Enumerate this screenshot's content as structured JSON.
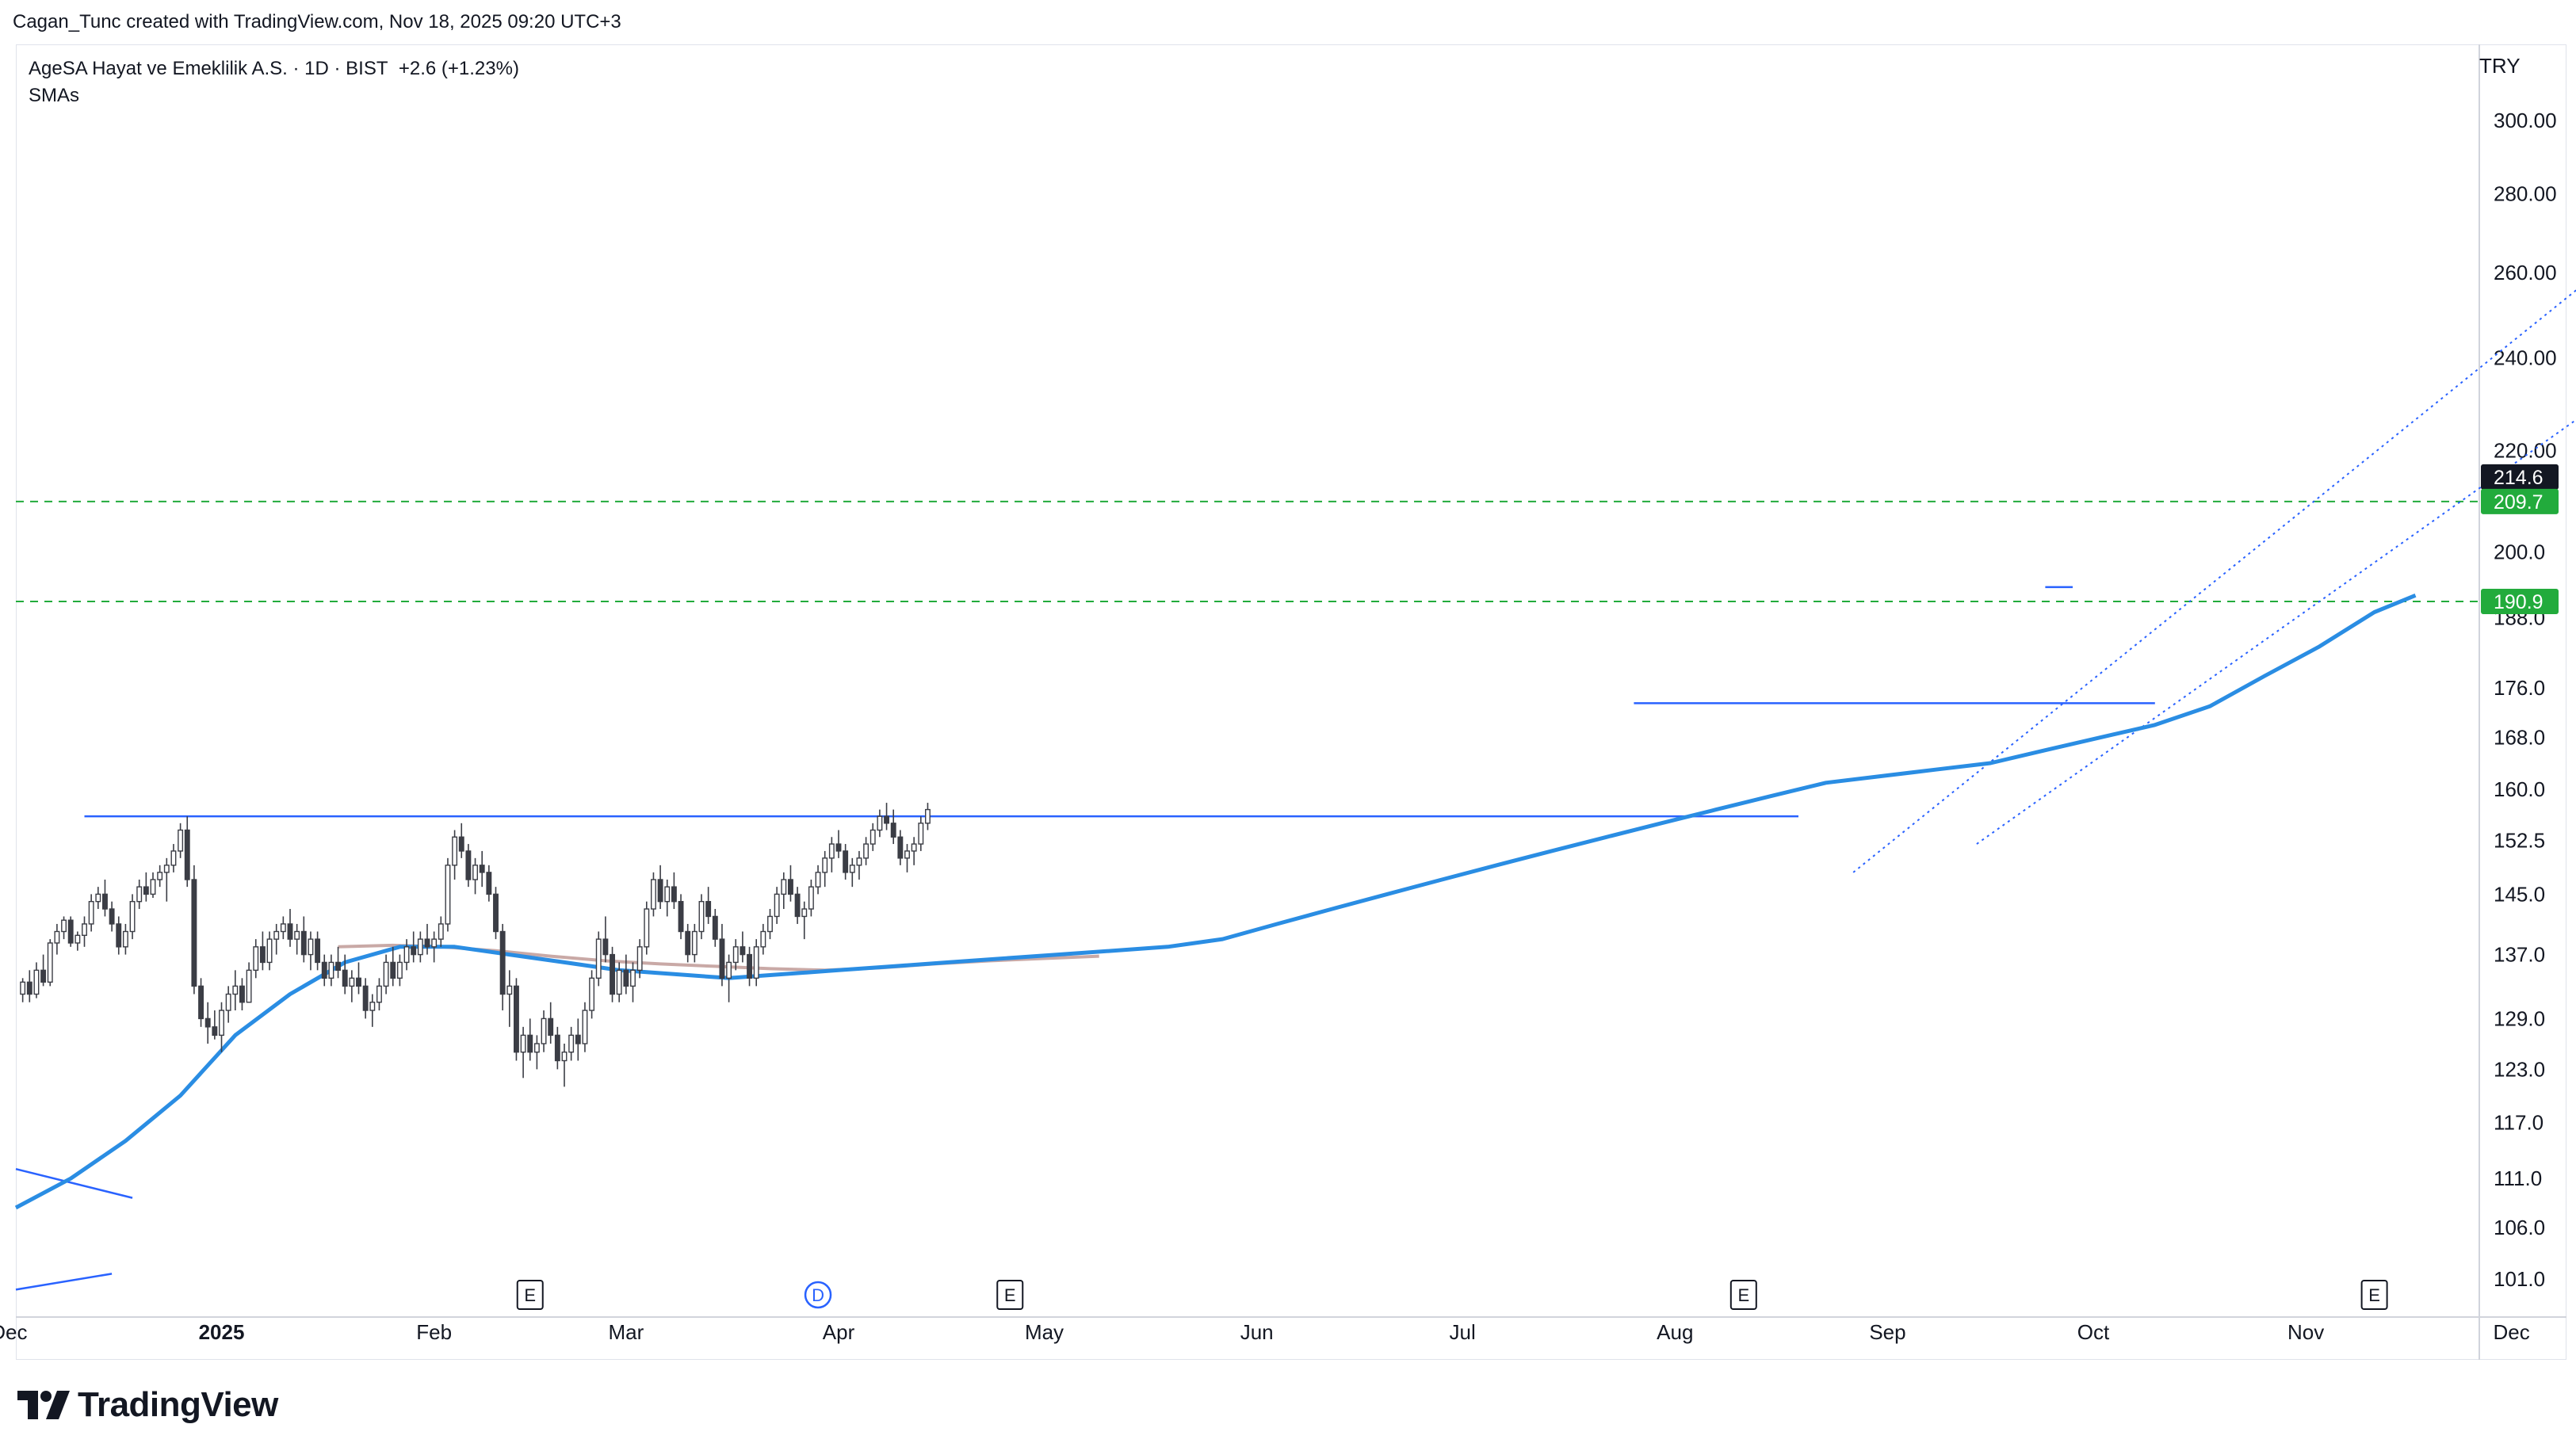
{
  "header": {
    "credit": "Cagan_Tunc created with TradingView.com, Nov 18, 2025 09:20 UTC+3"
  },
  "legend": {
    "symbol": "AgeSA Hayat ve Emeklilik A.S. · 1D · BIST",
    "change": "+2.6 (+1.23%)",
    "indicator": "SMAs"
  },
  "price_axis": {
    "currency": "TRY",
    "ticks": [
      "300.00",
      "280.00",
      "260.00",
      "240.00",
      "220.00",
      "200.0",
      "188.0",
      "176.0",
      "168.0",
      "160.0",
      "152.5",
      "145.0",
      "137.0",
      "129.0",
      "123.0",
      "117.0",
      "111.0",
      "106.0",
      "101.0"
    ],
    "tick_values": [
      300,
      280,
      260,
      240,
      220,
      200,
      188,
      176,
      168,
      160,
      152.5,
      145,
      137,
      129,
      123,
      117,
      111,
      106,
      101
    ],
    "badges": [
      {
        "label": "214.6",
        "value": 214.6,
        "color": "#131722"
      },
      {
        "label": "209.7",
        "value": 209.7,
        "color": "#22ab3c"
      },
      {
        "label": "190.9",
        "value": 190.9,
        "color": "#22ab3c"
      }
    ]
  },
  "time_axis": {
    "labels": [
      {
        "text": "Dec",
        "day": -1
      },
      {
        "text": "2025",
        "day": 30,
        "bold": true
      },
      {
        "text": "Feb",
        "day": 61
      },
      {
        "text": "Mar",
        "day": 89
      },
      {
        "text": "Apr",
        "day": 120
      },
      {
        "text": "May",
        "day": 150
      },
      {
        "text": "Jun",
        "day": 181
      },
      {
        "text": "Jul",
        "day": 211
      },
      {
        "text": "Aug",
        "day": 242
      },
      {
        "text": "Sep",
        "day": 273
      },
      {
        "text": "Oct",
        "day": 303
      },
      {
        "text": "Nov",
        "day": 334
      },
      {
        "text": "Dec",
        "day": 364
      }
    ]
  },
  "events": [
    {
      "label": "E",
      "day": 75,
      "type": "earnings"
    },
    {
      "label": "D",
      "day": 117,
      "type": "dividend"
    },
    {
      "label": "E",
      "day": 145,
      "type": "earnings"
    },
    {
      "label": "E",
      "day": 252,
      "type": "earnings"
    },
    {
      "label": "E",
      "day": 344,
      "type": "earnings"
    }
  ],
  "colors": {
    "sma_fast": "#c9a9a6",
    "sma_slow": "#2a8de3",
    "levels": "#22ab3c",
    "trendlines": "#2962ff",
    "candle_up": "#ffffff",
    "candle_down": "#3b3d45",
    "candle_outline": "#3b3d45"
  },
  "chart_data": {
    "type": "candlestick",
    "x_unit": "days since 2024-12-01",
    "y_scale": "log",
    "ylim": [
      96,
      320
    ],
    "candles": [
      [
        1,
        132,
        134,
        131,
        133.5
      ],
      [
        2,
        133.5,
        135,
        131,
        132
      ],
      [
        3,
        132,
        136,
        131.5,
        135
      ],
      [
        4,
        135,
        137,
        133,
        133.5
      ],
      [
        5,
        133.5,
        139,
        133,
        138.5
      ],
      [
        6,
        138.5,
        141,
        137,
        140
      ],
      [
        7,
        140,
        142,
        139,
        141.5
      ],
      [
        8,
        141.5,
        142,
        138,
        138.5
      ],
      [
        9,
        138.5,
        140,
        137.5,
        139.5
      ],
      [
        10,
        139.5,
        142,
        138,
        141
      ],
      [
        11,
        141,
        145,
        140,
        144
      ],
      [
        12,
        144,
        146,
        143,
        145
      ],
      [
        13,
        145,
        147,
        142,
        143
      ],
      [
        14,
        143,
        144,
        140,
        141
      ],
      [
        15,
        141,
        142,
        137,
        138
      ],
      [
        16,
        138,
        141,
        137,
        140
      ],
      [
        17,
        140,
        145,
        139,
        144
      ],
      [
        18,
        144,
        147,
        143,
        146
      ],
      [
        19,
        146,
        148,
        144,
        145
      ],
      [
        20,
        145,
        148,
        144.5,
        147
      ],
      [
        21,
        147,
        149,
        146,
        148
      ],
      [
        22,
        148,
        150,
        144,
        149
      ],
      [
        23,
        149,
        152,
        148,
        151
      ],
      [
        24,
        151,
        155,
        150,
        154
      ],
      [
        25,
        154,
        156,
        146,
        147
      ],
      [
        26,
        147,
        149,
        132,
        133
      ],
      [
        27,
        133,
        134,
        128,
        129
      ],
      [
        28,
        129,
        131,
        126,
        128
      ],
      [
        29,
        128,
        130,
        126.5,
        127
      ],
      [
        30,
        127,
        131,
        125,
        130
      ],
      [
        31,
        130,
        133,
        128.5,
        132
      ],
      [
        32,
        132,
        135,
        130,
        133
      ],
      [
        33,
        133,
        134,
        130,
        131
      ],
      [
        34,
        131,
        136,
        131,
        135
      ],
      [
        35,
        135,
        139,
        134,
        138
      ],
      [
        36,
        138,
        140,
        135,
        136
      ],
      [
        37,
        136,
        140,
        135,
        139
      ],
      [
        38,
        139,
        141,
        137,
        140
      ],
      [
        39,
        140,
        142,
        139,
        141
      ],
      [
        40,
        141,
        143,
        138,
        139
      ],
      [
        41,
        139,
        141,
        137,
        140
      ],
      [
        42,
        140,
        142,
        136,
        137
      ],
      [
        43,
        137,
        140,
        135,
        139
      ],
      [
        44,
        139,
        140,
        135,
        136
      ],
      [
        45,
        136,
        137,
        133,
        134
      ],
      [
        46,
        134,
        137,
        133,
        136
      ],
      [
        47,
        136,
        138,
        134,
        135
      ],
      [
        48,
        135,
        137,
        132,
        133
      ],
      [
        49,
        133,
        135,
        131,
        134
      ],
      [
        50,
        134,
        136,
        132,
        133
      ],
      [
        51,
        133,
        134,
        129,
        130
      ],
      [
        52,
        130,
        132,
        128,
        131
      ],
      [
        53,
        131,
        134,
        130,
        133
      ],
      [
        54,
        133,
        137,
        132,
        136
      ],
      [
        55,
        136,
        138,
        133,
        134
      ],
      [
        56,
        134,
        137,
        133,
        136
      ],
      [
        57,
        136,
        139,
        135,
        138
      ],
      [
        58,
        138,
        140,
        136,
        137
      ],
      [
        59,
        137,
        140,
        136,
        139
      ],
      [
        60,
        139,
        141,
        137,
        138
      ],
      [
        61,
        138,
        140,
        136,
        139
      ],
      [
        62,
        139,
        142,
        138,
        141
      ],
      [
        63,
        141,
        150,
        140,
        149
      ],
      [
        64,
        149,
        154,
        147,
        153
      ],
      [
        65,
        153,
        155,
        150,
        151
      ],
      [
        66,
        151,
        152,
        146,
        147
      ],
      [
        67,
        147,
        150,
        145,
        149
      ],
      [
        68,
        149,
        151,
        146,
        148
      ],
      [
        69,
        148,
        149,
        144,
        145
      ],
      [
        70,
        145,
        146,
        139,
        140
      ],
      [
        71,
        140,
        141,
        130,
        132
      ],
      [
        72,
        132,
        135,
        128,
        133
      ],
      [
        73,
        133,
        134,
        124,
        125
      ],
      [
        74,
        125,
        128,
        122,
        127
      ],
      [
        75,
        127,
        129,
        124,
        125
      ],
      [
        76,
        125,
        127,
        123,
        126
      ],
      [
        77,
        126,
        130,
        125,
        129
      ],
      [
        78,
        129,
        131,
        126,
        127
      ],
      [
        79,
        127,
        128,
        123,
        124
      ],
      [
        80,
        124,
        126,
        121,
        125
      ],
      [
        81,
        125,
        128,
        124,
        127
      ],
      [
        82,
        127,
        129,
        124,
        126
      ],
      [
        83,
        126,
        131,
        125,
        130
      ],
      [
        84,
        130,
        135,
        129,
        134
      ],
      [
        85,
        134,
        140,
        133,
        139
      ],
      [
        86,
        139,
        142,
        136,
        137
      ],
      [
        87,
        137,
        138,
        131,
        132
      ],
      [
        88,
        132,
        136,
        131,
        135
      ],
      [
        89,
        135,
        137,
        132,
        133
      ],
      [
        90,
        133,
        136,
        131,
        135
      ],
      [
        91,
        135,
        139,
        134,
        138
      ],
      [
        92,
        138,
        144,
        137,
        143
      ],
      [
        93,
        143,
        148,
        142,
        147
      ],
      [
        94,
        147,
        149,
        143,
        144
      ],
      [
        95,
        144,
        147,
        142,
        146
      ],
      [
        96,
        146,
        148,
        143,
        144
      ],
      [
        97,
        144,
        145,
        139,
        140
      ],
      [
        98,
        140,
        141,
        136,
        137
      ],
      [
        99,
        137,
        141,
        136,
        140
      ],
      [
        100,
        140,
        145,
        139,
        144
      ],
      [
        101,
        144,
        146,
        141,
        142
      ],
      [
        102,
        142,
        143,
        138,
        139
      ],
      [
        103,
        139,
        141,
        133,
        134
      ],
      [
        104,
        134,
        137,
        131,
        136
      ],
      [
        105,
        136,
        139,
        135,
        138
      ],
      [
        106,
        138,
        140,
        136,
        137
      ],
      [
        107,
        137,
        138,
        133,
        134
      ],
      [
        108,
        134,
        139,
        133,
        138
      ],
      [
        109,
        138,
        141,
        137,
        140
      ],
      [
        110,
        140,
        143,
        139,
        142
      ],
      [
        111,
        142,
        146,
        141,
        145
      ],
      [
        112,
        145,
        148,
        143,
        147
      ],
      [
        113,
        147,
        149,
        144,
        145
      ],
      [
        114,
        145,
        146,
        141,
        142
      ],
      [
        115,
        142,
        144,
        139,
        143
      ],
      [
        116,
        143,
        147,
        142,
        146
      ],
      [
        117,
        146,
        149,
        145,
        148
      ],
      [
        118,
        148,
        151,
        146,
        150
      ],
      [
        119,
        150,
        153,
        148,
        152
      ],
      [
        120,
        152,
        154,
        150,
        151
      ],
      [
        121,
        151,
        152,
        147,
        148
      ],
      [
        122,
        148,
        150,
        146,
        149
      ],
      [
        123,
        149,
        151,
        147,
        150
      ],
      [
        124,
        150,
        153,
        149,
        152
      ],
      [
        125,
        152,
        155,
        151,
        154
      ],
      [
        126,
        154,
        157,
        153,
        156
      ],
      [
        127,
        156,
        158,
        154,
        155
      ],
      [
        128,
        155,
        157,
        152,
        153
      ],
      [
        129,
        153,
        154,
        149,
        150
      ],
      [
        130,
        150,
        152,
        148,
        151
      ],
      [
        131,
        151,
        153,
        149,
        152
      ],
      [
        132,
        152,
        156,
        151,
        155
      ],
      [
        133,
        155,
        158,
        154,
        157
      ]
    ],
    "series": [
      {
        "name": "",
        "color": "#c9a9a6",
        "x": [
          47,
          55,
          62,
          70,
          78,
          86,
          94,
          102,
          110,
          118,
          126,
          134,
          142,
          150,
          158
        ],
        "y": [
          138,
          138.2,
          138,
          137.5,
          136.8,
          136.2,
          135.8,
          135.5,
          135.2,
          135,
          135.3,
          135.8,
          136.2,
          136.5,
          136.8
        ]
      },
      {
        "name": "",
        "color": "#2a8de3",
        "x": [
          0,
          8,
          16,
          24,
          32,
          40,
          48,
          56,
          64,
          72,
          80,
          88,
          96,
          104,
          112,
          120,
          128,
          136,
          144,
          152,
          160,
          168,
          176,
          184,
          192,
          200,
          208,
          216,
          224,
          232,
          240,
          248,
          256,
          264,
          272,
          280,
          288,
          296,
          304,
          312,
          320,
          328,
          336,
          344,
          350
        ],
        "y": [
          108,
          111,
          115,
          120,
          127,
          132,
          136,
          138,
          138,
          137,
          136,
          135,
          134.5,
          134,
          134.5,
          135,
          135.5,
          136,
          136.5,
          137,
          137.5,
          138,
          139,
          141,
          143,
          145,
          147,
          149,
          151,
          153,
          155,
          157,
          159,
          161,
          162,
          163,
          164,
          166,
          168,
          170,
          173,
          178,
          183,
          189,
          192
        ]
      }
    ],
    "levels": [
      209.7,
      190.9
    ],
    "trendlines": [
      {
        "x1": 10,
        "y1": 156,
        "x2": 260,
        "y2": 156
      },
      {
        "x1": 236,
        "y1": 173.5,
        "x2": 312,
        "y2": 173.5
      },
      {
        "x1": 296,
        "y1": 193.5,
        "x2": 300,
        "y2": 193.5
      },
      {
        "x1": 0,
        "y1": 112,
        "x2": 17,
        "y2": 109
      },
      {
        "x1": 0,
        "y1": 100,
        "x2": 14,
        "y2": 101.5
      }
    ],
    "channel": [
      {
        "x1": 268,
        "y1": 148,
        "x2": 386,
        "y2": 273
      },
      {
        "x1": 286,
        "y1": 152,
        "x2": 388,
        "y2": 242
      }
    ]
  }
}
